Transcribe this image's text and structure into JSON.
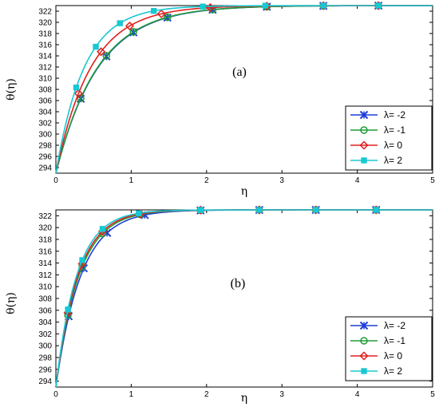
{
  "chart_data": [
    {
      "type": "line",
      "panel_label": "(a)",
      "xlabel": "η",
      "ylabel": "θ(η)",
      "xlim": [
        0,
        5
      ],
      "ylim": [
        293,
        323
      ],
      "xticks": [
        0,
        1,
        2,
        3,
        4,
        5
      ],
      "yticks": [
        294,
        296,
        298,
        300,
        302,
        304,
        306,
        308,
        310,
        312,
        314,
        316,
        318,
        320,
        322
      ],
      "grid": false,
      "legend_position": "bottom-right",
      "series": [
        {
          "name": "λ= -2",
          "color": "#1f3fd6",
          "marker": "x-star",
          "rate": 1.78,
          "marker_x": [
            0.33,
            0.67,
            1.03,
            1.48,
            2.08,
            2.8,
            3.55,
            4.28
          ]
        },
        {
          "name": "λ= -1",
          "color": "#1f9b35",
          "marker": "circle",
          "rate": 1.8,
          "marker_x": [
            0.33,
            0.67,
            1.03,
            1.48,
            2.08,
            2.8,
            3.55,
            4.28
          ]
        },
        {
          "name": "λ= 0",
          "color": "#e02020",
          "marker": "diamond",
          "rate": 2.15,
          "marker_x": [
            0.3,
            0.6,
            0.98,
            1.4,
            2.05,
            2.8,
            3.55,
            4.28
          ]
        },
        {
          "name": "λ= 2",
          "color": "#18c8d2",
          "marker": "square",
          "rate": 2.65,
          "marker_x": [
            0.27,
            0.53,
            0.85,
            1.3,
            1.95,
            2.78,
            3.55,
            4.28
          ]
        }
      ],
      "model": {
        "theta_wall": 293,
        "theta_inf": 323
      }
    },
    {
      "type": "line",
      "panel_label": "(b)",
      "xlabel": "η",
      "ylabel": "θ(η)",
      "xlim": [
        0,
        5
      ],
      "ylim": [
        293,
        323
      ],
      "xticks": [
        0,
        1,
        2,
        3,
        4,
        5
      ],
      "yticks": [
        294,
        296,
        298,
        300,
        302,
        304,
        306,
        308,
        310,
        312,
        314,
        316,
        318,
        320,
        322
      ],
      "grid": false,
      "legend_position": "bottom-right",
      "series": [
        {
          "name": "λ= -2",
          "color": "#1f3fd6",
          "marker": "x-star",
          "rate": 3.0,
          "marker_x": [
            0.17,
            0.37,
            0.68,
            1.18,
            1.92,
            2.7,
            3.45,
            4.25
          ]
        },
        {
          "name": "λ= -1",
          "color": "#1f9b35",
          "marker": "circle",
          "rate": 3.25,
          "marker_x": [
            0.16,
            0.35,
            0.62,
            1.12,
            1.92,
            2.7,
            3.45,
            4.25
          ]
        },
        {
          "name": "λ= 0",
          "color": "#e02020",
          "marker": "diamond",
          "rate": 3.4,
          "marker_x": [
            0.16,
            0.35,
            0.62,
            1.12,
            1.92,
            2.7,
            3.45,
            4.25
          ]
        },
        {
          "name": "λ= 2",
          "color": "#18c8d2",
          "marker": "square",
          "rate": 3.6,
          "marker_x": [
            0.16,
            0.35,
            0.62,
            1.1,
            1.92,
            2.7,
            3.45,
            4.25
          ]
        }
      ],
      "model": {
        "theta_wall": 293,
        "theta_inf": 323
      }
    }
  ]
}
